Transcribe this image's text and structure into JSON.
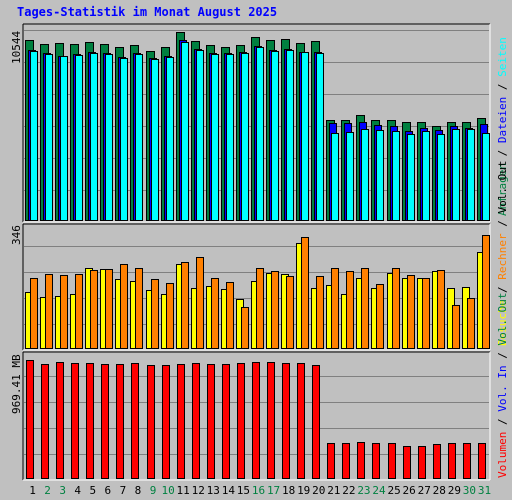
{
  "chart_data": {
    "type": "bar",
    "title": "Tages-Statistik im Monat August 2025",
    "days": [
      "1",
      "2",
      "3",
      "4",
      "5",
      "6",
      "7",
      "8",
      "9",
      "10",
      "11",
      "12",
      "13",
      "14",
      "15",
      "16",
      "17",
      "18",
      "19",
      "20",
      "21",
      "22",
      "23",
      "24",
      "25",
      "26",
      "27",
      "28",
      "29",
      "30",
      "31"
    ],
    "weekend_days": [
      "2",
      "3",
      "9",
      "10",
      "16",
      "17",
      "23",
      "24",
      "30",
      "31"
    ],
    "panels": [
      {
        "id": "top",
        "y_label": "10544",
        "ylim": [
          0,
          10544
        ],
        "series": [
          {
            "name": "Anfragen",
            "color": "#008040",
            "values": [
              10100,
              9850,
              9900,
              9850,
              10000,
              9850,
              9700,
              9800,
              9500,
              9700,
              10544,
              10050,
              9800,
              9700,
              9800,
              10250,
              10100,
              10150,
              9950,
              10050,
              5600,
              5600,
              5900,
              5600,
              5600,
              5500,
              5500,
              5300,
              5500,
              5500,
              5700
            ]
          },
          {
            "name": "Dateien",
            "color": "#0000ff",
            "values": [
              9550,
              9350,
              9200,
              9300,
              9400,
              9350,
              9150,
              9350,
              9100,
              9200,
              10100,
              9600,
              9350,
              9350,
              9400,
              9750,
              9550,
              9600,
              9450,
              9400,
              5450,
              5450,
              5500,
              5350,
              5250,
              5000,
              5150,
              5050,
              5250,
              5150,
              5400
            ]
          },
          {
            "name": "Seiten",
            "color": "#00ffff",
            "values": [
              9500,
              9300,
              9200,
              9250,
              9350,
              9300,
              9100,
              9300,
              9050,
              9150,
              10000,
              9550,
              9300,
              9300,
              9350,
              9700,
              9500,
              9550,
              9400,
              9350,
              4900,
              4950,
              5100,
              5050,
              5000,
              4850,
              5000,
              4800,
              5100,
              5100,
              4900
            ]
          }
        ]
      },
      {
        "id": "middle",
        "y_label": "346",
        "ylim": [
          0,
          346
        ],
        "series": [
          {
            "name": "Besuche",
            "color": "#ffff00",
            "values": [
              168,
              152,
              155,
              162,
              240,
              235,
              205,
              200,
              172,
              162,
              250,
              180,
              185,
              175,
              145,
              200,
              225,
              220,
              312,
              180,
              188,
              160,
              210,
              178,
              225,
              208,
              210,
              230,
              178,
              182,
              285
            ]
          },
          {
            "name": "Rechner",
            "color": "#ff8000",
            "values": [
              208,
              220,
              218,
              222,
              232,
              236,
              252,
              238,
              206,
              193,
              256,
              272,
              208,
              198,
              122,
              238,
              230,
              214,
              330,
              215,
              240,
              230,
              240,
              190,
              240,
              218,
              210,
              232,
              128,
              148,
              338
            ]
          }
        ]
      },
      {
        "id": "bottom",
        "y_label": "969.41 MB",
        "ylim": [
          0,
          969.41
        ],
        "series": [
          {
            "name": "Volumen",
            "color": "#ff0000",
            "values": [
              969.41,
              938,
              950,
              946,
              942,
              938,
              938,
              942,
              926,
              932,
              938,
              942,
              934,
              938,
              946,
              954,
              954,
              946,
              946,
              926,
              286,
              286,
              292,
              286,
              284,
              266,
              266,
              276,
              284,
              286,
              286
            ]
          }
        ]
      }
    ],
    "right_legend": {
      "top": [
        {
          "text": "Anfragen",
          "color": "#008040"
        },
        {
          "text": " / ",
          "color": "#000000"
        },
        {
          "text": "Dateien",
          "color": "#0000ff"
        },
        {
          "text": " / ",
          "color": "#000000"
        },
        {
          "text": "Seiten",
          "color": "#00ffff"
        }
      ],
      "middle": [
        {
          "text": "Besuche",
          "color": "#ffff00"
        },
        {
          "text": " / ",
          "color": "#000000"
        },
        {
          "text": "Rechner",
          "color": "#ff8000"
        },
        {
          "text": " / ",
          "color": "#000000"
        },
        {
          "text": "Vol. Out",
          "color": "#000000"
        }
      ],
      "bottom": [
        {
          "text": "Volumen",
          "color": "#ff0000"
        },
        {
          "text": " / ",
          "color": "#000000"
        },
        {
          "text": "Vol. In",
          "color": "#0000ff"
        },
        {
          "text": " / ",
          "color": "#000000"
        },
        {
          "text": "Vol. Out",
          "color": "#008040"
        }
      ]
    },
    "colors": {
      "background": "#c0c0c0",
      "title": "#0000ff",
      "weekday_label": "#000000",
      "weekend_label": "#008040",
      "grid": "#808080"
    },
    "grid": true
  }
}
